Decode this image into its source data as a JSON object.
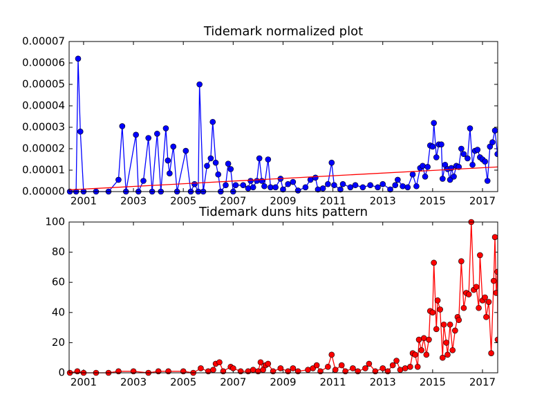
{
  "chart_data": [
    {
      "type": "line",
      "title": "Tidemark normalized plot",
      "xlim": [
        2000.42,
        2017.61
      ],
      "xticks": [
        2001,
        2003,
        2005,
        2007,
        2009,
        2011,
        2013,
        2015,
        2017
      ],
      "ylim": [
        0,
        7e-05
      ],
      "yticks": [
        {
          "value": 0,
          "label": "0.00000"
        },
        {
          "value": 1e-05,
          "label": "0.00001"
        },
        {
          "value": 2e-05,
          "label": "0.00002"
        },
        {
          "value": 3e-05,
          "label": "0.00003"
        },
        {
          "value": 4e-05,
          "label": "0.00004"
        },
        {
          "value": 5e-05,
          "label": "0.00005"
        },
        {
          "value": 6e-05,
          "label": "0.00006"
        },
        {
          "value": 7e-05,
          "label": "0.00007"
        }
      ],
      "series": [
        {
          "color": "#0000ff",
          "x": [
            2000.45,
            2000.7,
            2000.78,
            2000.87,
            2001.0,
            2001.5,
            2002.0,
            2002.4,
            2002.55,
            2002.7,
            2003.1,
            2003.2,
            2003.4,
            2003.6,
            2003.75,
            2003.95,
            2004.1,
            2004.3,
            2004.38,
            2004.45,
            2004.6,
            2004.75,
            2005.1,
            2005.3,
            2005.45,
            2005.6,
            2005.65,
            2005.8,
            2005.95,
            2006.1,
            2006.18,
            2006.3,
            2006.4,
            2006.5,
            2006.7,
            2006.8,
            2006.9,
            2007.0,
            2007.1,
            2007.4,
            2007.6,
            2007.7,
            2007.8,
            2007.95,
            2008.05,
            2008.15,
            2008.25,
            2008.4,
            2008.5,
            2008.7,
            2008.9,
            2009.0,
            2009.2,
            2009.4,
            2009.6,
            2009.9,
            2010.1,
            2010.3,
            2010.4,
            2010.6,
            2010.8,
            2010.95,
            2011.05,
            2011.3,
            2011.4,
            2011.7,
            2011.9,
            2012.2,
            2012.5,
            2012.8,
            2013.0,
            2013.3,
            2013.5,
            2013.6,
            2013.8,
            2014.0,
            2014.2,
            2014.35,
            2014.5,
            2014.6,
            2014.7,
            2014.8,
            2014.9,
            2015.0,
            2015.05,
            2015.15,
            2015.25,
            2015.35,
            2015.4,
            2015.5,
            2015.6,
            2015.7,
            2015.75,
            2015.85,
            2015.95,
            2016.05,
            2016.15,
            2016.25,
            2016.4,
            2016.5,
            2016.6,
            2016.7,
            2016.8,
            2016.9,
            2017.0,
            2017.1,
            2017.2,
            2017.3,
            2017.4,
            2017.5,
            2017.6
          ],
          "values": [
            0,
            0,
            6.2e-05,
            2.8e-05,
            0,
            0,
            0,
            5.5e-06,
            3.05e-05,
            0,
            2.65e-05,
            0,
            5e-06,
            2.5e-05,
            0,
            2.7e-05,
            0,
            2.95e-05,
            1.45e-05,
            8.5e-06,
            2.1e-05,
            0,
            1.9e-05,
            0,
            3.5e-06,
            0,
            5e-05,
            0,
            1.2e-05,
            1.55e-05,
            3.25e-05,
            1.35e-05,
            8e-06,
            0,
            3e-06,
            1.3e-05,
            1.05e-05,
            0,
            3e-06,
            3e-06,
            1.5e-06,
            5e-06,
            2e-06,
            5e-06,
            1.55e-05,
            5e-06,
            2.5e-06,
            1.5e-05,
            2e-06,
            2e-06,
            6e-06,
            1e-06,
            3.5e-06,
            4.5e-06,
            5e-07,
            2e-06,
            5.5e-06,
            6.5e-06,
            1e-06,
            1.5e-06,
            3.5e-06,
            1.35e-05,
            3e-06,
            1e-06,
            3.5e-06,
            2e-06,
            3e-06,
            2e-06,
            3e-06,
            2e-06,
            3.5e-06,
            1e-06,
            3e-06,
            5.5e-06,
            2.5e-06,
            2e-06,
            8e-06,
            2.5e-06,
            1.1e-05,
            1.2e-05,
            7e-06,
            1.15e-05,
            2.15e-05,
            2.1e-05,
            3.2e-05,
            1.6e-05,
            2.2e-05,
            2.2e-05,
            6e-06,
            1.25e-05,
            1.05e-05,
            5.5e-06,
            1.1e-05,
            7e-06,
            1.2e-05,
            1.15e-05,
            2e-05,
            1.75e-05,
            1.55e-05,
            2.95e-05,
            1.25e-05,
            1.9e-05,
            1.95e-05,
            1.6e-05,
            1.5e-05,
            1.4e-05,
            5e-06,
            2.1e-05,
            2.3e-05,
            2.85e-05,
            1.75e-05
          ]
        },
        {
          "color": "#ff0000",
          "markers": false,
          "x": [
            2000.42,
            2017.61
          ],
          "values": [
            8e-07,
            1.15e-05
          ]
        }
      ]
    },
    {
      "type": "line",
      "title": "Tidemark duns hits pattern",
      "xlim": [
        2000.42,
        2017.61
      ],
      "xticks": [
        2001,
        2003,
        2005,
        2007,
        2009,
        2011,
        2013,
        2015,
        2017
      ],
      "ylim": [
        0,
        100
      ],
      "yticks": [
        0,
        20,
        40,
        60,
        80,
        100
      ],
      "series": [
        {
          "color": "#ff0000",
          "x": [
            2000.45,
            2000.75,
            2001.0,
            2001.5,
            2002.0,
            2002.4,
            2003.0,
            2003.6,
            2004.0,
            2004.4,
            2005.0,
            2005.4,
            2005.7,
            2006.0,
            2006.2,
            2006.3,
            2006.45,
            2006.6,
            2006.9,
            2007.0,
            2007.3,
            2007.6,
            2007.8,
            2008.0,
            2008.1,
            2008.2,
            2008.3,
            2008.4,
            2008.6,
            2008.9,
            2009.2,
            2009.4,
            2009.6,
            2010.0,
            2010.2,
            2010.35,
            2010.5,
            2010.8,
            2010.95,
            2011.1,
            2011.35,
            2011.5,
            2011.8,
            2012.0,
            2012.3,
            2012.45,
            2012.7,
            2013.0,
            2013.2,
            2013.4,
            2013.55,
            2013.7,
            2013.9,
            2014.1,
            2014.2,
            2014.3,
            2014.4,
            2014.45,
            2014.55,
            2014.65,
            2014.75,
            2014.85,
            2014.9,
            2015.0,
            2015.05,
            2015.15,
            2015.2,
            2015.3,
            2015.4,
            2015.45,
            2015.55,
            2015.6,
            2015.7,
            2015.8,
            2015.9,
            2016.0,
            2016.05,
            2016.15,
            2016.25,
            2016.35,
            2016.45,
            2016.55,
            2016.65,
            2016.75,
            2016.85,
            2016.9,
            2017.0,
            2017.1,
            2017.15,
            2017.25,
            2017.35,
            2017.45,
            2017.5,
            2017.55,
            2017.6,
            2017.61
          ],
          "values": [
            0,
            1,
            0,
            0,
            0,
            1,
            1,
            0,
            1,
            1,
            1,
            0,
            3,
            1,
            2,
            6,
            7,
            1,
            4,
            3,
            1,
            1,
            2,
            1,
            7,
            2,
            5,
            6,
            1,
            3,
            1,
            3,
            1,
            2,
            3,
            5,
            1,
            4,
            12,
            2,
            5,
            1,
            3,
            1,
            3,
            6,
            1,
            3,
            1,
            5,
            8,
            2,
            3,
            4,
            13,
            12,
            4,
            22,
            15,
            23,
            12,
            22,
            41,
            40,
            73,
            29,
            48,
            42,
            10,
            32,
            20,
            12,
            32,
            15,
            28,
            37,
            35,
            74,
            43,
            53,
            52,
            100,
            55,
            57,
            43,
            78,
            48,
            50,
            37,
            47,
            13,
            61,
            90,
            53,
            67,
            22
          ]
        }
      ]
    }
  ]
}
